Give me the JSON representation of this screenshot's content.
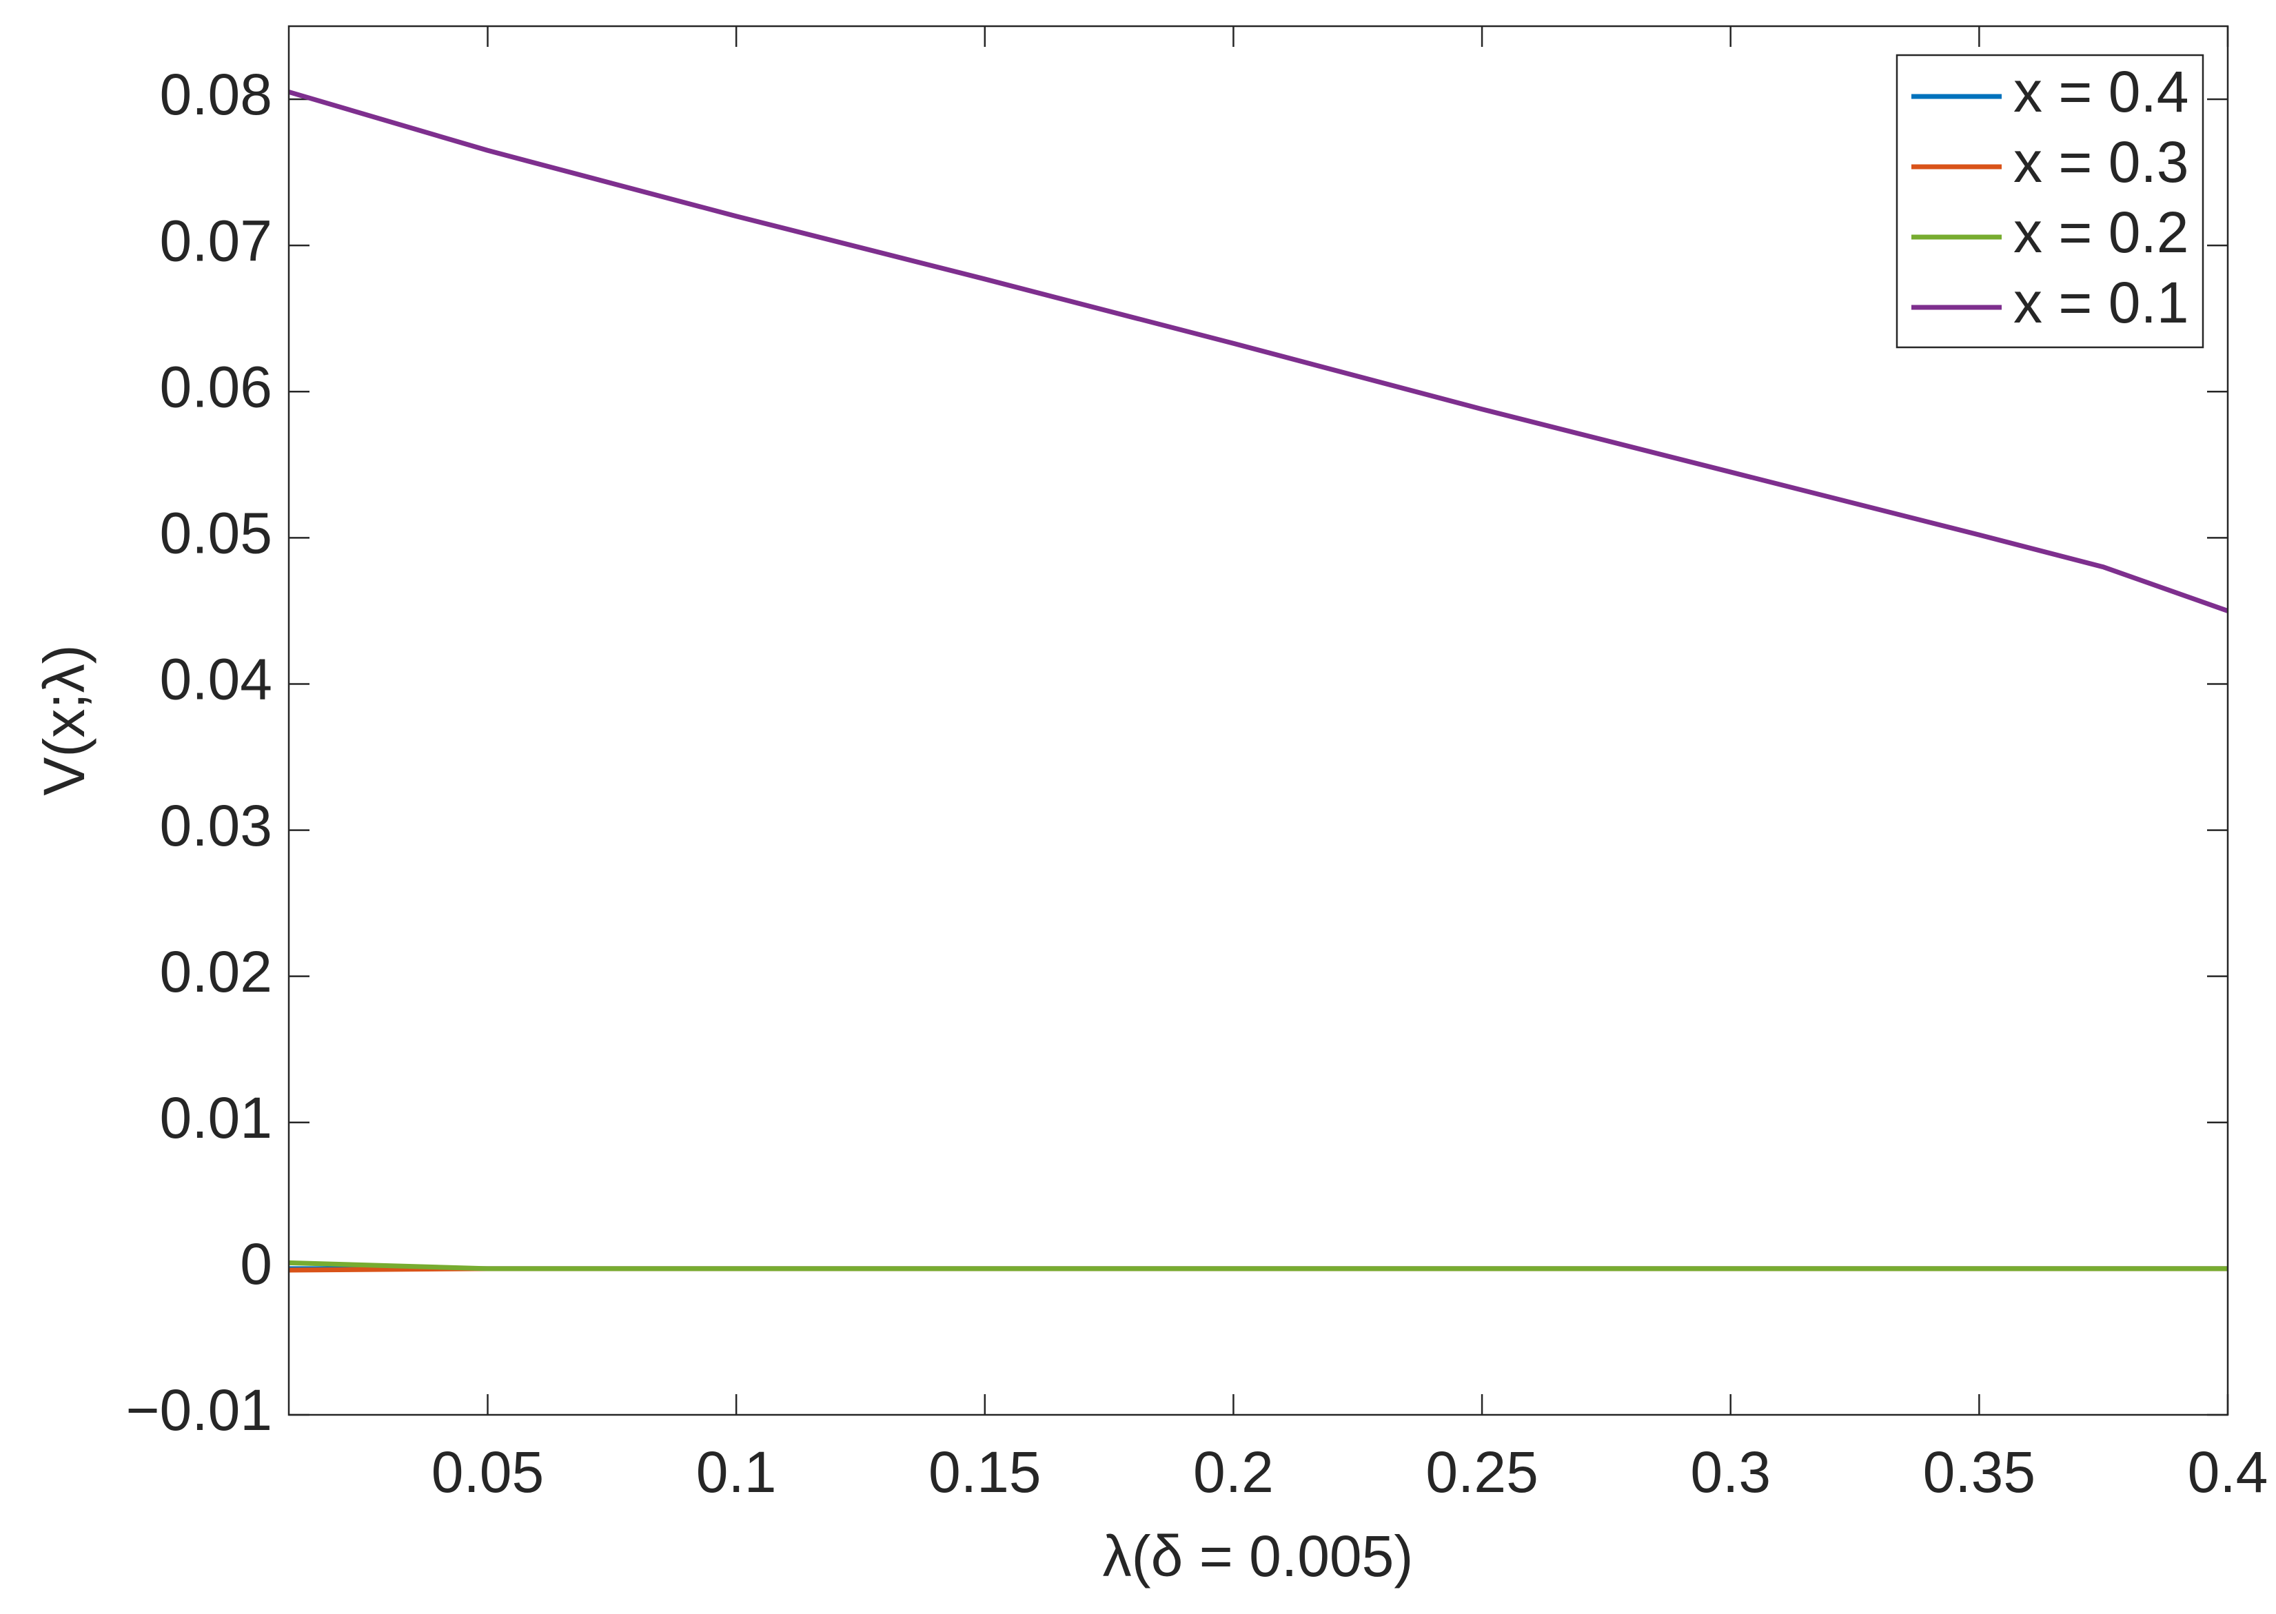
{
  "chart_data": {
    "type": "line",
    "x_label": "λ(δ = 0.005)",
    "y_label": "V(x;λ)",
    "x": [
      0.01,
      0.05,
      0.1,
      0.15,
      0.2,
      0.25,
      0.3,
      0.35,
      0.375,
      0.4
    ],
    "series": [
      {
        "name": "x = 0.4",
        "color": "#0072bd",
        "values": [
          0,
          0,
          0,
          0,
          0,
          0,
          0,
          0,
          0,
          0
        ]
      },
      {
        "name": "x = 0.3",
        "color": "#d95319",
        "values": [
          -0.0001,
          0,
          0,
          0,
          0,
          0,
          0,
          0,
          0,
          0
        ]
      },
      {
        "name": "x = 0.2",
        "color": "#77ac30",
        "values": [
          0.0004,
          0,
          0,
          0,
          0,
          0,
          0,
          0,
          0,
          0
        ]
      },
      {
        "name": "x = 0.1",
        "color": "#7e2f8e",
        "values": [
          0.0805,
          0.0765,
          0.072,
          0.0677,
          0.0633,
          0.0588,
          0.0545,
          0.0502,
          0.048,
          0.045
        ]
      }
    ],
    "xlim": [
      0.01,
      0.4
    ],
    "ylim": [
      -0.01,
      0.085
    ],
    "xticks": [
      0.05,
      0.1,
      0.15,
      0.2,
      0.25,
      0.3,
      0.35,
      0.4
    ],
    "yticks": [
      {
        "value": -0.01,
        "label": "−0.01"
      },
      0,
      0.01,
      0.02,
      0.03,
      0.04,
      0.05,
      0.06,
      0.07,
      0.08
    ],
    "legend": "top-right"
  }
}
